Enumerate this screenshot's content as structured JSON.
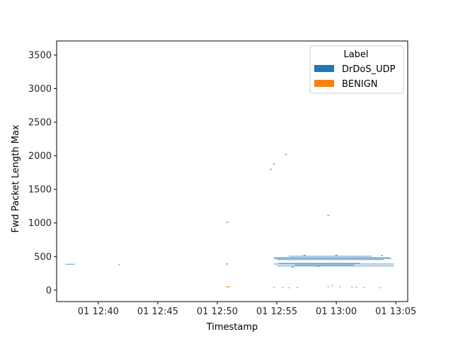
{
  "chart_data": {
    "type": "scatter",
    "title": "",
    "xlabel": "Timestamp",
    "ylabel": "Fwd Packet Length Max",
    "xlim": [
      "01 12:36:30",
      "01 13:06:00"
    ],
    "ylim": [
      -170,
      3710
    ],
    "x_ticks": [
      "01 12:40",
      "01 12:45",
      "01 12:50",
      "01 12:55",
      "01 13:00",
      "01 13:05"
    ],
    "y_ticks": [
      0,
      500,
      1000,
      1500,
      2000,
      2500,
      3000,
      3500
    ],
    "grid": false,
    "legend": {
      "title": "Label",
      "position": "top-right",
      "entries": [
        {
          "name": "DrDoS_UDP",
          "color": "#1f77b4"
        },
        {
          "name": "BENIGN",
          "color": "#ff7f0e"
        }
      ]
    },
    "series": [
      {
        "name": "DrDoS_UDP",
        "color": "#1f77b4",
        "segments": [
          {
            "x0": "01 12:37:15",
            "x1": "01 12:38:00",
            "y": 385
          },
          {
            "x0": "01 12:41:40",
            "x1": "01 12:41:50",
            "y": 380
          },
          {
            "x0": "01 12:54:45",
            "x1": "01 13:04:50",
            "y": 389
          },
          {
            "x0": "01 12:54:45",
            "x1": "01 13:04:30",
            "y": 482
          },
          {
            "x0": "01 12:54:45",
            "x1": "01 13:04:40",
            "y": 472
          },
          {
            "x0": "01 12:55:00",
            "x1": "01 13:04:00",
            "y": 455
          },
          {
            "x0": "01 12:55:00",
            "x1": "01 13:04:50",
            "y": 360
          },
          {
            "x0": "01 12:56:00",
            "x1": "01 13:03:00",
            "y": 505
          },
          {
            "x0": "01 12:55:10",
            "x1": "01 13:02:00",
            "y": 400
          },
          {
            "x0": "01 12:56:30",
            "x1": "01 13:01:30",
            "y": 372
          }
        ],
        "points": [
          {
            "x": "01 12:54:30",
            "y": 1800
          },
          {
            "x": "01 12:54:45",
            "y": 1880
          },
          {
            "x": "01 12:55:45",
            "y": 2020
          },
          {
            "x": "01 12:59:20",
            "y": 1110
          },
          {
            "x": "01 12:50:50",
            "y": 1010
          },
          {
            "x": "01 12:50:50",
            "y": 390
          },
          {
            "x": "01 12:57:20",
            "y": 520
          },
          {
            "x": "01 13:00:00",
            "y": 520
          },
          {
            "x": "01 13:03:50",
            "y": 515
          },
          {
            "x": "01 12:56:20",
            "y": 345
          },
          {
            "x": "01 12:58:30",
            "y": 355
          }
        ]
      },
      {
        "name": "BENIGN",
        "color": "#ff7f0e",
        "segments": [
          {
            "x0": "01 12:50:45",
            "x1": "01 12:51:05",
            "y": 50
          }
        ],
        "points": [
          {
            "x": "01 12:50:50",
            "y": 1010
          },
          {
            "x": "01 12:50:50",
            "y": 390
          },
          {
            "x": "01 12:54:45",
            "y": 40
          },
          {
            "x": "01 12:55:30",
            "y": 40
          },
          {
            "x": "01 12:56:00",
            "y": 35
          },
          {
            "x": "01 12:56:45",
            "y": 40
          },
          {
            "x": "01 12:59:20",
            "y": 50
          },
          {
            "x": "01 12:59:40",
            "y": 65
          },
          {
            "x": "01 13:00:20",
            "y": 50
          },
          {
            "x": "01 13:01:20",
            "y": 45
          },
          {
            "x": "01 13:01:40",
            "y": 40
          },
          {
            "x": "01 13:02:20",
            "y": 40
          },
          {
            "x": "01 13:03:40",
            "y": 35
          }
        ]
      }
    ]
  }
}
